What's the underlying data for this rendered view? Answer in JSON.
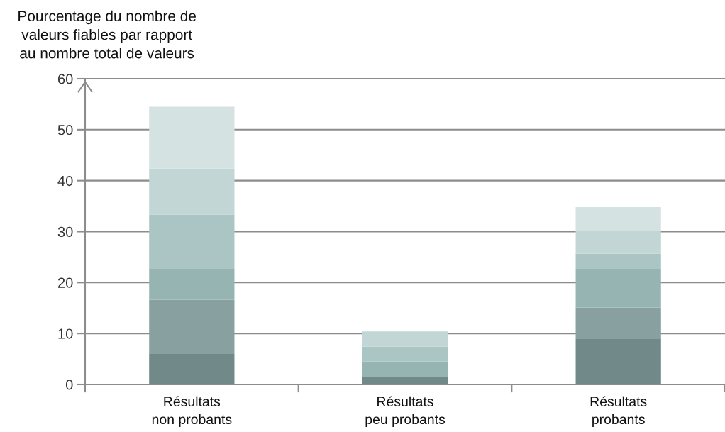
{
  "chart_data": {
    "type": "bar",
    "stacked": true,
    "ylabel": "Pourcentage du nombre de\nvaleurs fiables par rapport\nau nombre total de valeurs",
    "categories": [
      "Résultats\nnon probants",
      "Résultats\npeu probants",
      "Résultats\nprobants"
    ],
    "series": [
      {
        "color": "#718a89",
        "values": [
          6.0,
          1.4,
          8.9
        ]
      },
      {
        "color": "#88a09f",
        "values": [
          10.6,
          0,
          6.2
        ]
      },
      {
        "color": "#96b4b2",
        "values": [
          6.1,
          3.1,
          7.6
        ]
      },
      {
        "color": "#aac5c4",
        "values": [
          10.6,
          2.9,
          3.0
        ]
      },
      {
        "color": "#c1d6d5",
        "values": [
          9.1,
          3.0,
          4.6
        ]
      },
      {
        "color": "#d5e2e2",
        "values": [
          12.1,
          0,
          4.5
        ]
      }
    ],
    "ylim": [
      0,
      60
    ],
    "yticks": [
      0,
      10,
      20,
      30,
      40,
      50,
      60
    ],
    "grid": "y"
  }
}
